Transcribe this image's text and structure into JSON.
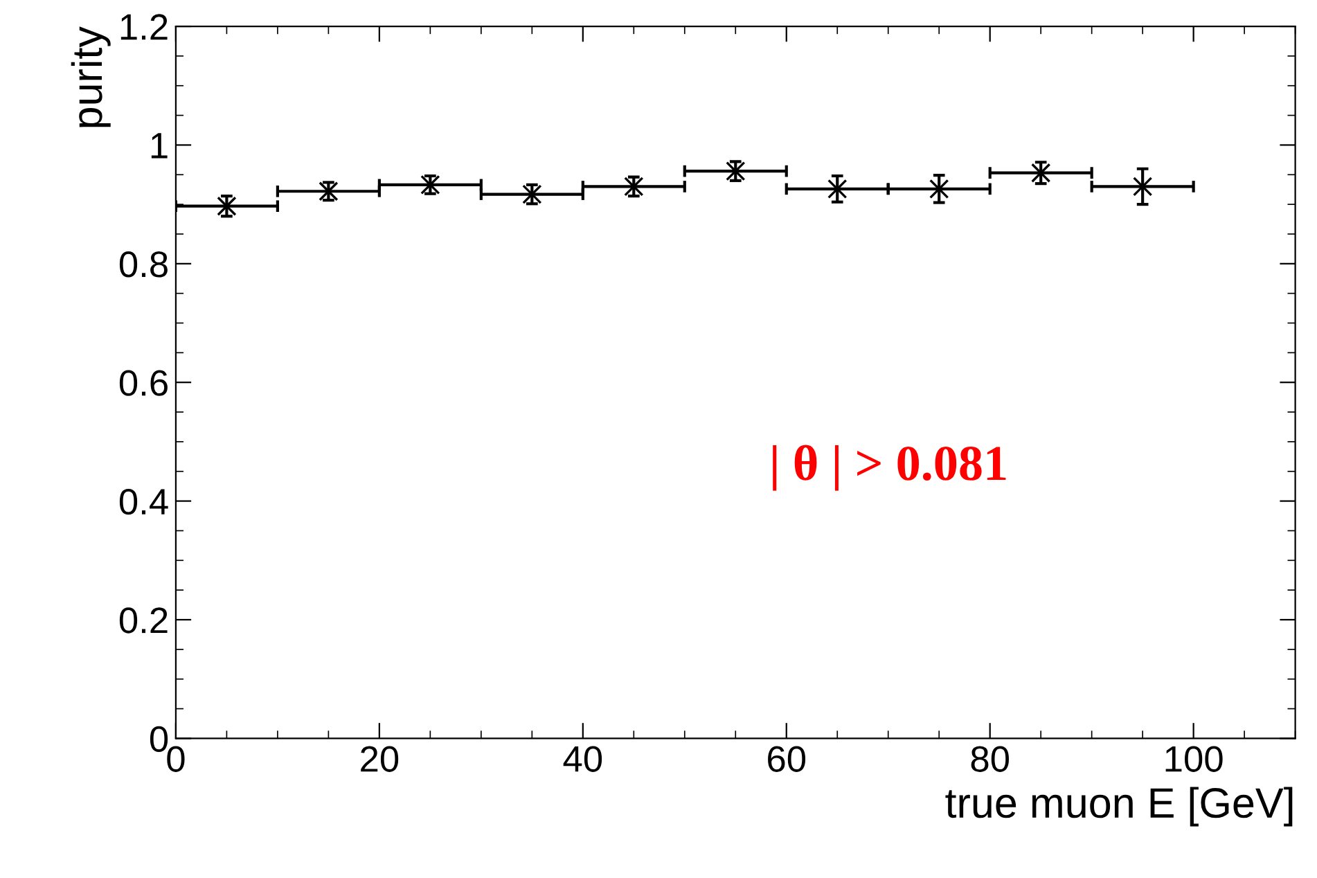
{
  "chart_data": {
    "type": "scatter",
    "xlabel": "true muon E [GeV]",
    "ylabel": "purity",
    "x": [
      5,
      15,
      25,
      35,
      45,
      55,
      65,
      75,
      85,
      95
    ],
    "series": [
      {
        "color": "#000000",
        "values": [
          0.897,
          0.922,
          0.933,
          0.917,
          0.93,
          0.956,
          0.926,
          0.926,
          0.953,
          0.93
        ],
        "errors": [
          0.017,
          0.015,
          0.015,
          0.016,
          0.016,
          0.016,
          0.022,
          0.023,
          0.018,
          0.03
        ],
        "xerrors": [
          5,
          5,
          5,
          5,
          5,
          5,
          5,
          5,
          5,
          5
        ]
      }
    ],
    "marker": "cross",
    "xlim": [
      0,
      110
    ],
    "xticks": [
      0,
      20,
      40,
      60,
      80,
      100
    ],
    "ylim": [
      0,
      1.2
    ],
    "yticks": [
      0,
      0.2,
      0.4,
      0.6,
      0.8,
      1,
      1.2
    ],
    "grid": false,
    "legend": false,
    "annotations": [
      "| θ | > 0.081"
    ]
  }
}
